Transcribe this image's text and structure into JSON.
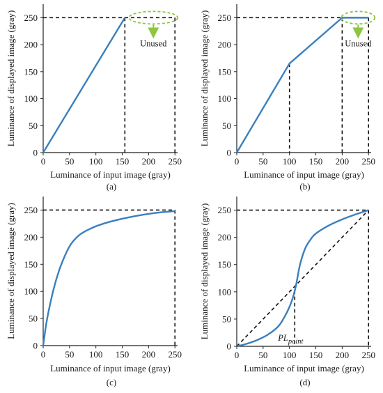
{
  "colors": {
    "curve": "#3a7fbf",
    "axis": "#222222",
    "dashed": "#111111",
    "ellipse": "#8dc63f",
    "arrow": "#8dc63f"
  },
  "chart_data": [
    {
      "panel": "(a)",
      "type": "line",
      "xlabel": "Luminance of input image (gray)",
      "ylabel": "Luminance of displayed image (gray)",
      "xlim": [
        0,
        255
      ],
      "ylim": [
        0,
        275
      ],
      "xticks": [
        "0",
        "50",
        "100",
        "150",
        "200",
        "250"
      ],
      "yticks": [
        "0",
        "50",
        "100",
        "150",
        "200",
        "250"
      ],
      "series": [
        {
          "x": [
            0,
            155
          ],
          "y": [
            0,
            250
          ]
        }
      ],
      "guides": {
        "vlines": [
          155,
          250
        ],
        "hline": 250
      },
      "annotation": "Unused"
    },
    {
      "panel": "(b)",
      "type": "line",
      "xlabel": "Luminance of input image (gray)",
      "ylabel": "Luminance of displayed image (gray)",
      "xlim": [
        0,
        255
      ],
      "ylim": [
        0,
        275
      ],
      "xticks": [
        "0",
        "50",
        "100",
        "150",
        "200",
        "250"
      ],
      "yticks": [
        "0",
        "50",
        "100",
        "150",
        "200",
        "250"
      ],
      "series": [
        {
          "x": [
            0,
            100,
            200,
            250
          ],
          "y": [
            0,
            165,
            250,
            250
          ]
        }
      ],
      "guides": {
        "vlines": [
          100,
          200,
          250
        ],
        "hline": 250
      },
      "annotation": "Unused"
    },
    {
      "panel": "(c)",
      "type": "line",
      "xlabel": "Luminance of input image (gray)",
      "ylabel": "Luminance of displayed image (gray)",
      "xlim": [
        0,
        255
      ],
      "ylim": [
        0,
        275
      ],
      "xticks": [
        "0",
        "50",
        "100",
        "150",
        "200",
        "250"
      ],
      "yticks": [
        "0",
        "50",
        "100",
        "150",
        "200",
        "250"
      ],
      "series": [
        {
          "x": [
            0,
            5,
            10,
            20,
            30,
            40,
            50,
            60,
            70,
            80,
            100,
            125,
            150,
            175,
            200,
            225,
            250
          ],
          "y": [
            0,
            35,
            62,
            105,
            138,
            163,
            183,
            196,
            205,
            211,
            220,
            228,
            234,
            239,
            243,
            246,
            248
          ]
        }
      ],
      "guides": {
        "vlines": [
          250
        ],
        "hline": 250
      }
    },
    {
      "panel": "(d)",
      "type": "line",
      "xlabel": "Luminance of input image (gray)",
      "ylabel": "Luminance of displayed image (gray)",
      "xlim": [
        0,
        255
      ],
      "ylim": [
        0,
        275
      ],
      "xticks": [
        "0",
        "50",
        "100",
        "150",
        "200",
        "250"
      ],
      "yticks": [
        "0",
        "50",
        "100",
        "150",
        "200",
        "250"
      ],
      "series": [
        {
          "x": [
            0,
            20,
            40,
            60,
            80,
            95,
            105,
            112,
            120,
            130,
            140,
            150,
            175,
            200,
            225,
            250
          ],
          "y": [
            0,
            5,
            12,
            22,
            38,
            62,
            85,
            110,
            150,
            180,
            196,
            207,
            222,
            233,
            242,
            250
          ]
        }
      ],
      "reference_line": {
        "x": [
          0,
          250
        ],
        "y": [
          0,
          250
        ]
      },
      "guides": {
        "vlines": [
          110,
          250
        ],
        "hline": 250
      },
      "annotation": {
        "main": "PL",
        "sub": "point"
      }
    }
  ]
}
